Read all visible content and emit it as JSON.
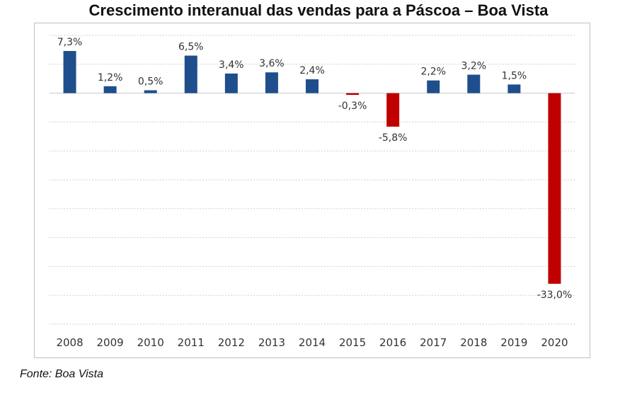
{
  "chart_data": {
    "type": "bar",
    "title": "Crescimento interanual das vendas para a Páscoa – Boa Vista",
    "categories": [
      "2008",
      "2009",
      "2010",
      "2011",
      "2012",
      "2013",
      "2014",
      "2015",
      "2016",
      "2017",
      "2018",
      "2019",
      "2020"
    ],
    "values": [
      7.3,
      1.2,
      0.5,
      6.5,
      3.4,
      3.6,
      2.4,
      -0.3,
      -5.8,
      2.2,
      3.2,
      1.5,
      -33.0
    ],
    "data_labels": [
      "7,3%",
      "1,2%",
      "0,5%",
      "6,5%",
      "3,4%",
      "3,6%",
      "2,4%",
      "-0,3%",
      "-5,8%",
      "2,2%",
      "3,2%",
      "1,5%",
      "-33,0%"
    ],
    "xlabel": "",
    "ylabel": "",
    "ylim": [
      -40,
      10
    ],
    "grid": true,
    "colors": {
      "positive": "#1f4e8c",
      "negative": "#c00000"
    }
  },
  "source": "Fonte: Boa Vista"
}
